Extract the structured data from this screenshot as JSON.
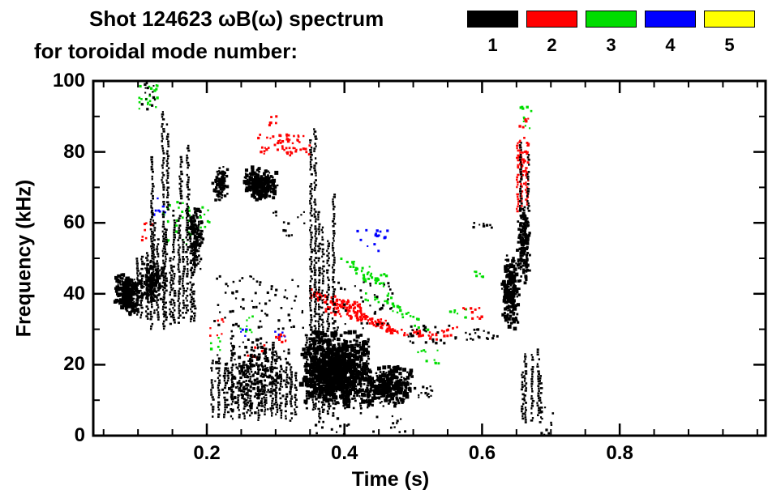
{
  "title_line1": "Shot 124623 ωB(ω) spectrum",
  "title_line2": "for toroidal mode number:",
  "legend": {
    "modes": [
      {
        "label": "1",
        "color": "#000000"
      },
      {
        "label": "2",
        "color": "#ff0000"
      },
      {
        "label": "3",
        "color": "#00dd00"
      },
      {
        "label": "4",
        "color": "#0000ff"
      },
      {
        "label": "5",
        "color": "#ffff00"
      }
    ]
  },
  "chart_data": {
    "type": "scatter",
    "title": "Shot 124623 ωB(ω) spectrum for toroidal mode number",
    "xlabel": "Time (s)",
    "ylabel": "Frequency (kHz)",
    "xlim": [
      0.035,
      1.012
    ],
    "ylim": [
      0,
      100
    ],
    "x_major_ticks": [
      0.2,
      0.4,
      0.6,
      0.8
    ],
    "x_tick_labels": [
      "0.2",
      "0.4",
      "0.6",
      "0.8"
    ],
    "x_minor_step": 0.05,
    "y_major_ticks": [
      0,
      20,
      40,
      60,
      80,
      100
    ],
    "y_tick_labels": [
      "0",
      "20",
      "40",
      "60",
      "80",
      "100"
    ],
    "y_minor_step": 10,
    "grid": false,
    "legend_position": "top-right",
    "seed": 7,
    "series": [
      {
        "name": "n=1",
        "color": "#000000",
        "clusters": [
          {
            "type": "blob",
            "t": [
              0.065,
              0.105
            ],
            "f": [
              34,
              46
            ],
            "n": 260,
            "size": [
              2,
              5
            ]
          },
          {
            "type": "blob",
            "t": [
              0.1,
              0.14
            ],
            "f": [
              37,
              50
            ],
            "n": 160,
            "size": [
              2,
              4
            ]
          },
          {
            "type": "vstreaks",
            "t": [
              0.095,
              0.185
            ],
            "f": [
              30,
              66
            ],
            "streaks": 15
          },
          {
            "type": "vstreaks",
            "t": [
              0.115,
              0.175
            ],
            "f": [
              62,
              92
            ],
            "streaks": 5
          },
          {
            "type": "dots",
            "t": [
              0.105,
              0.125
            ],
            "f": [
              92,
              100
            ],
            "n": 14
          },
          {
            "type": "blob",
            "t": [
              0.172,
              0.195
            ],
            "f": [
              46,
              66
            ],
            "n": 140,
            "size": [
              2,
              4
            ]
          },
          {
            "type": "blob",
            "t": [
              0.208,
              0.232
            ],
            "f": [
              66,
              76
            ],
            "n": 90,
            "size": [
              2,
              4
            ]
          },
          {
            "type": "blob",
            "t": [
              0.252,
              0.305
            ],
            "f": [
              66,
              76
            ],
            "n": 230,
            "size": [
              2,
              5
            ]
          },
          {
            "type": "vstreaks",
            "t": [
              0.205,
              0.33
            ],
            "f": [
              4,
              30
            ],
            "streaks": 18
          },
          {
            "type": "blob",
            "t": [
              0.21,
              0.33
            ],
            "f": [
              5,
              28
            ],
            "n": 250,
            "size": [
              2,
              4
            ]
          },
          {
            "type": "dots",
            "t": [
              0.21,
              0.34
            ],
            "f": [
              30,
              45
            ],
            "n": 70
          },
          {
            "type": "dots",
            "t": [
              0.295,
              0.345
            ],
            "f": [
              55,
              64
            ],
            "n": 14
          },
          {
            "type": "vstreaks",
            "t": [
              0.345,
              0.385
            ],
            "f": [
              5,
              88
            ],
            "streaks": 6
          },
          {
            "type": "vstreaks",
            "t": [
              0.34,
              0.44
            ],
            "f": [
              6,
              30
            ],
            "streaks": 10
          },
          {
            "type": "blob",
            "t": [
              0.335,
              0.44
            ],
            "f": [
              8,
              30
            ],
            "n": 800,
            "size": [
              2,
              6
            ]
          },
          {
            "type": "blob",
            "t": [
              0.425,
              0.5
            ],
            "f": [
              8,
              20
            ],
            "n": 320,
            "size": [
              2,
              5
            ]
          },
          {
            "type": "dots",
            "t": [
              0.385,
              0.47
            ],
            "f": [
              30,
              44
            ],
            "n": 40
          },
          {
            "type": "dots",
            "t": [
              0.355,
              0.41
            ],
            "f": [
              0,
              5
            ],
            "n": 14
          },
          {
            "type": "dots",
            "t": [
              0.44,
              0.49
            ],
            "f": [
              1,
              6
            ],
            "n": 12
          },
          {
            "type": "dots",
            "t": [
              0.5,
              0.53
            ],
            "f": [
              10,
              14
            ],
            "n": 14
          },
          {
            "type": "dots",
            "t": [
              0.49,
              0.565
            ],
            "f": [
              26,
              31
            ],
            "n": 26
          },
          {
            "type": "dots",
            "t": [
              0.575,
              0.625
            ],
            "f": [
              27,
              30
            ],
            "n": 18
          },
          {
            "type": "dots",
            "t": [
              0.585,
              0.615
            ],
            "f": [
              57,
              60
            ],
            "n": 8
          },
          {
            "type": "blob",
            "t": [
              0.628,
              0.655
            ],
            "f": [
              30,
              52
            ],
            "n": 200,
            "size": [
              2,
              5
            ]
          },
          {
            "type": "blob",
            "t": [
              0.65,
              0.672
            ],
            "f": [
              42,
              66
            ],
            "n": 160,
            "size": [
              2,
              4
            ]
          },
          {
            "type": "vstreaks",
            "t": [
              0.648,
              0.668
            ],
            "f": [
              60,
              92
            ],
            "streaks": 2
          },
          {
            "type": "vstreaks",
            "t": [
              0.652,
              0.69
            ],
            "f": [
              3,
              28
            ],
            "streaks": 5
          },
          {
            "type": "dots",
            "t": [
              0.685,
              0.705
            ],
            "f": [
              0,
              8
            ],
            "n": 10
          }
        ]
      },
      {
        "name": "n=2",
        "color": "#ff0000",
        "clusters": [
          {
            "type": "dots",
            "t": [
              0.105,
              0.125
            ],
            "f": [
              55,
              60
            ],
            "n": 8
          },
          {
            "type": "dots",
            "t": [
              0.205,
              0.225
            ],
            "f": [
              28,
              33
            ],
            "n": 8
          },
          {
            "type": "dots",
            "t": [
              0.255,
              0.285
            ],
            "f": [
              22,
              26
            ],
            "n": 10
          },
          {
            "type": "dots",
            "t": [
              0.275,
              0.35
            ],
            "f": [
              79,
              85
            ],
            "n": 60
          },
          {
            "type": "dots",
            "t": [
              0.29,
              0.302
            ],
            "f": [
              86,
              90
            ],
            "n": 6
          },
          {
            "type": "dots",
            "t": [
              0.3,
              0.318
            ],
            "f": [
              26,
              29
            ],
            "n": 8
          },
          {
            "type": "band",
            "t": [
              0.35,
              0.425
            ],
            "f": [
              40,
              36
            ],
            "n": 90,
            "jitter": 1.4
          },
          {
            "type": "band",
            "t": [
              0.37,
              0.435
            ],
            "f": [
              36,
              33
            ],
            "n": 45,
            "jitter": 1.2
          },
          {
            "type": "band",
            "t": [
              0.415,
              0.478
            ],
            "f": [
              34,
              30
            ],
            "n": 55,
            "jitter": 1.3
          },
          {
            "type": "band",
            "t": [
              0.46,
              0.535
            ],
            "f": [
              30,
              28
            ],
            "n": 40,
            "jitter": 1.0
          },
          {
            "type": "dots",
            "t": [
              0.54,
              0.565
            ],
            "f": [
              28,
              31
            ],
            "n": 10
          },
          {
            "type": "dots",
            "t": [
              0.57,
              0.6
            ],
            "f": [
              33,
              36
            ],
            "n": 10
          },
          {
            "type": "vstreaks",
            "t": [
              0.648,
              0.666
            ],
            "f": [
              62,
              86
            ],
            "streaks": 3
          },
          {
            "type": "dots",
            "t": [
              0.652,
              0.668
            ],
            "f": [
              70,
              84
            ],
            "n": 40
          },
          {
            "type": "dots",
            "t": [
              0.655,
              0.67
            ],
            "f": [
              86,
              90
            ],
            "n": 6
          }
        ]
      },
      {
        "name": "n=3",
        "color": "#00dd00",
        "clusters": [
          {
            "type": "dots",
            "t": [
              0.095,
              0.135
            ],
            "f": [
              92,
              100
            ],
            "n": 22
          },
          {
            "type": "dots",
            "t": [
              0.13,
              0.178
            ],
            "f": [
              54,
              66
            ],
            "n": 26
          },
          {
            "type": "dots",
            "t": [
              0.19,
              0.205
            ],
            "f": [
              58,
              66
            ],
            "n": 8
          },
          {
            "type": "dots",
            "t": [
              0.205,
              0.222
            ],
            "f": [
              24,
              28
            ],
            "n": 6
          },
          {
            "type": "dots",
            "t": [
              0.245,
              0.268
            ],
            "f": [
              29,
              34
            ],
            "n": 8
          },
          {
            "type": "band",
            "t": [
              0.395,
              0.47
            ],
            "f": [
              50,
              40
            ],
            "n": 35,
            "jitter": 1.6
          },
          {
            "type": "dots",
            "t": [
              0.425,
              0.462
            ],
            "f": [
              42,
              48
            ],
            "n": 14
          },
          {
            "type": "band",
            "t": [
              0.43,
              0.525
            ],
            "f": [
              40,
              30
            ],
            "n": 30,
            "jitter": 1.6
          },
          {
            "type": "dots",
            "t": [
              0.5,
              0.538
            ],
            "f": [
              20,
              26
            ],
            "n": 10
          },
          {
            "type": "dots",
            "t": [
              0.552,
              0.578
            ],
            "f": [
              33,
              37
            ],
            "n": 8
          },
          {
            "type": "dots",
            "t": [
              0.585,
              0.602
            ],
            "f": [
              43,
              47
            ],
            "n": 6
          },
          {
            "type": "dots",
            "t": [
              0.655,
              0.672
            ],
            "f": [
              86,
              93
            ],
            "n": 10
          }
        ]
      },
      {
        "name": "n=4",
        "color": "#0000ff",
        "clusters": [
          {
            "type": "dots",
            "t": [
              0.123,
              0.142
            ],
            "f": [
              62,
              67
            ],
            "n": 10
          },
          {
            "type": "dots",
            "t": [
              0.245,
              0.258
            ],
            "f": [
              28,
              31
            ],
            "n": 4
          },
          {
            "type": "dots",
            "t": [
              0.298,
              0.315
            ],
            "f": [
              27,
              30
            ],
            "n": 6
          },
          {
            "type": "dots",
            "t": [
              0.418,
              0.468
            ],
            "f": [
              52,
              58
            ],
            "n": 16
          }
        ]
      },
      {
        "name": "n=5",
        "color": "#ffff00",
        "clusters": []
      }
    ]
  }
}
